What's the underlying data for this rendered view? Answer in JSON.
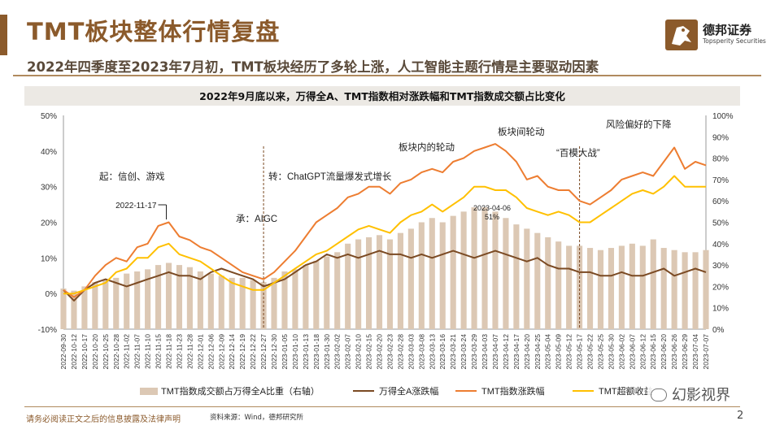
{
  "header": {
    "title": "TMT板块整体行情复盘",
    "subtitle": "2022年四季度至2023年7月初，TMT板块经历了多轮上涨，人工智能主题行情是主要驱动因素"
  },
  "logo": {
    "cn": "德邦证券",
    "en": "Topsperity Securities"
  },
  "chart_title": "2022年9月底以来，万得全A、TMT指数相对涨跌幅和TMT指数成交额占比变化",
  "footer": {
    "disclaimer": "请务必阅读正文之后的信息披露及法律声明",
    "source": "资料来源：Wind，德邦研究所",
    "page": "2"
  },
  "watermark": "幻影视界",
  "colors": {
    "accent": "#8B5A2B",
    "bar": "#dcc8b4",
    "wind_a": "#7B4A23",
    "tmt": "#ED7D31",
    "tmt_excess": "#FFC000"
  },
  "chart_data": {
    "type": "line",
    "grid": false,
    "legend_position": "bottom",
    "y_left_ticks": [
      "50%",
      "40%",
      "30%",
      "20%",
      "10%",
      "0%",
      "-10%"
    ],
    "y_right_ticks": [
      "100%",
      "90%",
      "80%",
      "70%",
      "60%",
      "50%",
      "40%",
      "30%",
      "20%",
      "10%",
      "0%"
    ],
    "ylim_left": [
      -10,
      50
    ],
    "ylim_right": [
      0,
      100
    ],
    "x_tick_labels": [
      "2022-09-30",
      "2022-10-12",
      "2022-10-17",
      "2022-10-20",
      "2022-10-25",
      "2022-10-28",
      "2022-11-02",
      "2022-11-07",
      "2022-11-10",
      "2022-11-15",
      "2022-11-18",
      "2022-11-23",
      "2022-11-28",
      "2022-12-01",
      "2022-12-06",
      "2022-12-09",
      "2022-12-14",
      "2022-12-19",
      "2022-12-22",
      "2022-12-27",
      "2022-12-30",
      "2023-01-05",
      "2023-01-10",
      "2023-01-13",
      "2023-01-18",
      "2023-01-30",
      "2023-02-02",
      "2023-02-07",
      "2023-02-10",
      "2023-02-15",
      "2023-02-20",
      "2023-02-23",
      "2023-02-28",
      "2023-03-03",
      "2023-03-08",
      "2023-03-13",
      "2023-03-16",
      "2023-03-21",
      "2023-03-24",
      "2023-03-29",
      "2023-04-03",
      "2023-04-07",
      "2023-04-12",
      "2023-04-17",
      "2023-04-20",
      "2023-04-25",
      "2023-05-04",
      "2023-05-09",
      "2023-05-12",
      "2023-05-17",
      "2023-05-22",
      "2023-05-25",
      "2023-05-30",
      "2023-06-02",
      "2023-06-07",
      "2023-06-12",
      "2023-06-15",
      "2023-06-20",
      "2023-06-26",
      "2023-06-29",
      "2023-07-04",
      "2023-07-07"
    ],
    "series": [
      {
        "name": "TMT指数成交额占万得全A比重（右轴）",
        "type": "bar",
        "axis": "right",
        "values": [
          19,
          18,
          20,
          22,
          23,
          24,
          26,
          27,
          28,
          30,
          31,
          30,
          29,
          27,
          26,
          25,
          24,
          24,
          23,
          22,
          24,
          27,
          28,
          30,
          32,
          34,
          36,
          40,
          42,
          43,
          44,
          42,
          45,
          47,
          50,
          52,
          50,
          53,
          55,
          57,
          57,
          55,
          52,
          49,
          47,
          45,
          43,
          41,
          39,
          39,
          38,
          37,
          38,
          39,
          40,
          39,
          42,
          38,
          37,
          36,
          36,
          37
        ]
      },
      {
        "name": "万得全A涨跌幅",
        "type": "line",
        "axis": "left",
        "values": [
          1,
          -2,
          1,
          3,
          4,
          3,
          2,
          3,
          4,
          5,
          6,
          5,
          5,
          4,
          6,
          7,
          6,
          5,
          4,
          2,
          3,
          4,
          6,
          8,
          9,
          11,
          10,
          11,
          10,
          11,
          12,
          11,
          11,
          10,
          11,
          10,
          11,
          12,
          11,
          10,
          11,
          12,
          11,
          10,
          9,
          10,
          8,
          7,
          7,
          6,
          6,
          5,
          5,
          6,
          5,
          5,
          6,
          7,
          5,
          6,
          7,
          6
        ]
      },
      {
        "name": "TMT指数涨跌幅",
        "type": "line",
        "axis": "left",
        "values": [
          1,
          -1,
          1,
          5,
          8,
          10,
          9,
          13,
          14,
          19,
          20,
          16,
          15,
          13,
          12,
          10,
          8,
          6,
          5,
          4,
          6,
          9,
          12,
          16,
          20,
          22,
          24,
          27,
          28,
          30,
          30,
          28,
          31,
          32,
          34,
          35,
          34,
          37,
          38,
          40,
          41,
          42,
          40,
          37,
          32,
          33,
          30,
          29,
          29,
          26,
          25,
          27,
          29,
          32,
          33,
          34,
          33,
          37,
          41,
          35,
          37,
          36
        ]
      },
      {
        "name": "TMT超额收益",
        "type": "line",
        "axis": "left",
        "values": [
          0,
          0,
          1,
          2,
          3,
          6,
          7,
          10,
          10,
          13,
          14,
          11,
          10,
          9,
          7,
          5,
          3,
          2,
          1,
          1,
          3,
          5,
          7,
          9,
          11,
          12,
          14,
          16,
          18,
          19,
          18,
          17,
          20,
          22,
          23,
          25,
          23,
          25,
          27,
          30,
          30,
          29,
          29,
          27,
          24,
          23,
          22,
          23,
          22,
          20,
          20,
          22,
          24,
          26,
          28,
          29,
          28,
          30,
          33,
          30,
          30,
          30
        ]
      }
    ],
    "annotations": [
      {
        "text": "起：信创、游戏"
      },
      {
        "text": "承：AIGC"
      },
      {
        "text": "转：ChatGPT流量爆发式增长"
      },
      {
        "text": "板块内的轮动"
      },
      {
        "text": "板块间轮动"
      },
      {
        "text": "“百模大战”"
      },
      {
        "text": "风险偏好的下降"
      },
      {
        "text": "2022-11-17"
      },
      {
        "text": "2023-04-06"
      },
      {
        "text": "51%"
      }
    ],
    "vlines_at": [
      "2022-12-27",
      "2023-05-17"
    ]
  }
}
